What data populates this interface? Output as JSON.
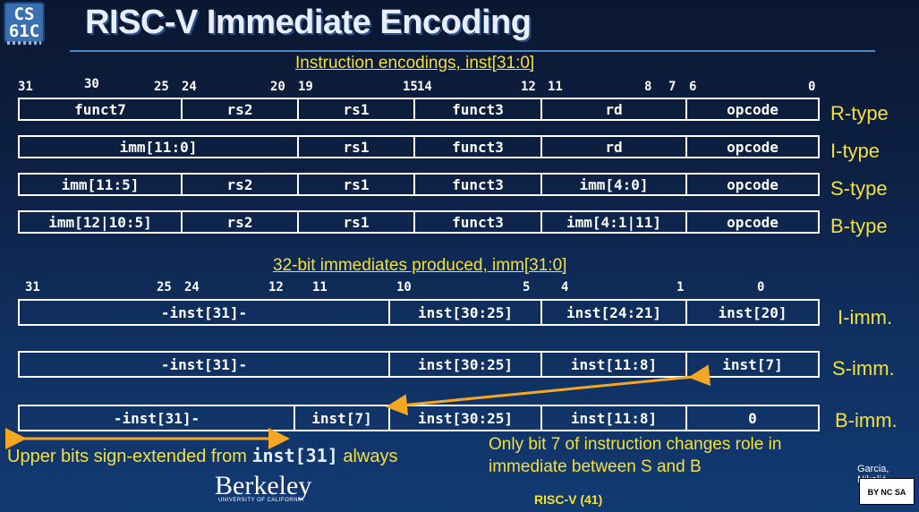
{
  "header": {
    "logo_line1": "CS",
    "logo_line2": "61C",
    "title": "RISC-V Immediate Encoding"
  },
  "encodings": {
    "heading": "Instruction encodings, inst[31:0]",
    "bit_labels": [
      "31",
      "30",
      "25",
      "24",
      "20",
      "19",
      "15",
      "14",
      "12",
      "11",
      "8",
      "7",
      "6",
      "0"
    ],
    "rows": [
      {
        "label": "R-type",
        "fields": [
          "funct7",
          "rs2",
          "rs1",
          "funct3",
          "rd",
          "opcode"
        ]
      },
      {
        "label": "I-type",
        "fields": [
          "imm[11:0]",
          "rs1",
          "funct3",
          "rd",
          "opcode"
        ]
      },
      {
        "label": "S-type",
        "fields": [
          "imm[11:5]",
          "rs2",
          "rs1",
          "funct3",
          "imm[4:0]",
          "opcode"
        ]
      },
      {
        "label": "B-type",
        "fields": [
          "imm[12|10:5]",
          "rs2",
          "rs1",
          "funct3",
          "imm[4:1|11]",
          "opcode"
        ]
      }
    ]
  },
  "immediates": {
    "heading": "32-bit immediates produced, imm[31:0]",
    "bit_labels": [
      "31",
      "25",
      "24",
      "12",
      "11",
      "10",
      "5",
      "4",
      "1",
      "0"
    ],
    "rows": [
      {
        "label": "I-imm.",
        "fields": [
          "-inst[31]-",
          "inst[30:25]",
          "inst[24:21]",
          "inst[20]"
        ]
      },
      {
        "label": "S-imm.",
        "fields": [
          "-inst[31]-",
          "inst[30:25]",
          "inst[11:8]",
          "inst[7]"
        ]
      },
      {
        "label": "B-imm.",
        "fields": [
          "-inst[31]-",
          "inst[7]",
          "inst[30:25]",
          "inst[11:8]",
          "0"
        ]
      }
    ]
  },
  "notes": {
    "sign_ext_prefix": "Upper bits sign-extended from ",
    "sign_ext_code": "inst[31]",
    "sign_ext_suffix": " always",
    "bit7_line1": "Only bit 7 of instruction changes role in",
    "bit7_line2": "immediate between S and B"
  },
  "footer": {
    "university": "Berkeley",
    "university_sub": "UNIVERSITY OF CALIFORNIA",
    "slide_label": "RISC-V (41)",
    "author": "Garcia, Nikolić",
    "license": "BY NC SA"
  },
  "colors": {
    "accent_yellow": "#f3e03a",
    "arrow_orange": "#f5a623",
    "background": "#0f2e5c"
  }
}
